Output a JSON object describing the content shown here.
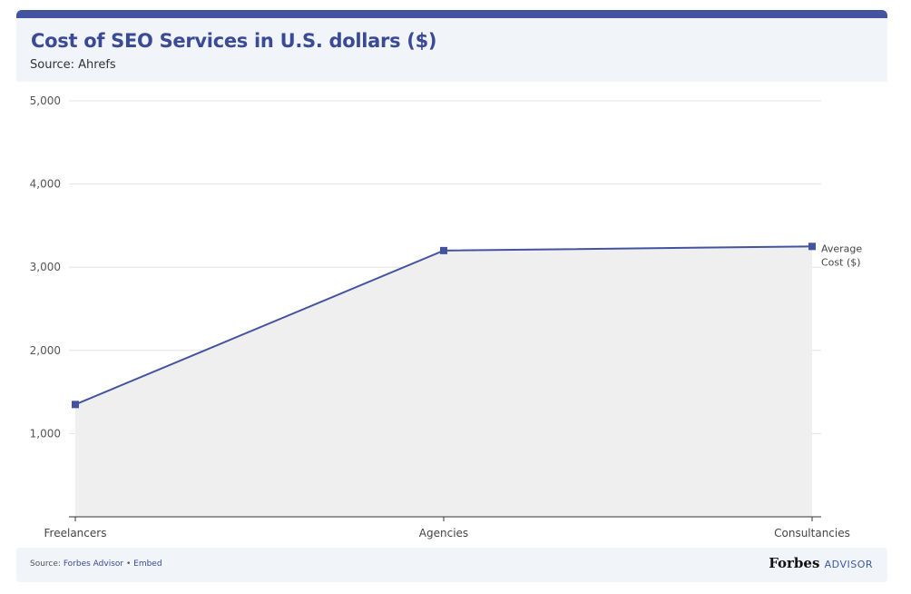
{
  "header": {
    "title": "Cost of SEO Services in U.S. dollars ($)",
    "source": "Source: Ahrefs"
  },
  "footer": {
    "source_label": "Source: ",
    "source_link": "Forbes Advisor",
    "separator": " • ",
    "embed": "Embed",
    "logo": "Forbes",
    "logo_suffix": "ADVISOR"
  },
  "chart_data": {
    "type": "area",
    "title": "Cost of SEO Services in U.S. dollars ($)",
    "categories": [
      "Freelancers",
      "Agencies",
      "Consultancies"
    ],
    "series": [
      {
        "name": "Average Cost ($)",
        "values": [
          1350,
          3200,
          3250
        ]
      }
    ],
    "yticks": [
      "1,000",
      "2,000",
      "3,000",
      "4,000",
      "5,000"
    ],
    "ylim": [
      0,
      5000
    ],
    "grid": true,
    "colors": {
      "line": "#4453a0",
      "fill": "#efefef"
    }
  }
}
